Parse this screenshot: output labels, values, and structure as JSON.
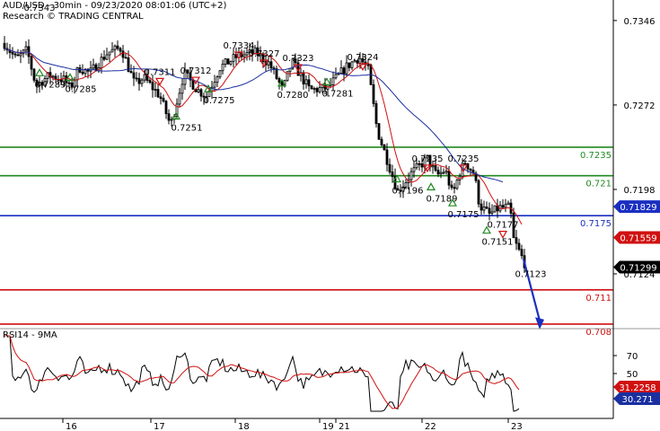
{
  "header": {
    "line1": "AUD/USD - 30min - 09/23/2020 08:01:06 (UTC+2)",
    "line2": "Research © TRADING CENTRAL"
  },
  "rsi": {
    "label": "RSI14 - 9MA"
  },
  "chart_data": [
    {
      "type": "candlestick",
      "x_ticks": [
        "16",
        "17",
        "18",
        "19",
        "21",
        "22",
        "23"
      ],
      "y_ticks": [
        "0.7346",
        "0.7272",
        "0.7198",
        "0.7124"
      ],
      "ylim": [
        0.7076,
        0.7364
      ],
      "moving_averages": [
        {
          "color": "#d01010"
        },
        {
          "color": "#1a2fa0"
        }
      ],
      "horizontal_levels": [
        {
          "value": "0.7235",
          "color": "#208a20"
        },
        {
          "value": "0.721",
          "color": "#208a20"
        },
        {
          "value": "0.7175",
          "color": "#1a2fc0"
        },
        {
          "value": "0.711",
          "color": "#d01010"
        },
        {
          "value": "0.708",
          "color": "#d01010"
        }
      ],
      "price_tags": [
        {
          "value": "0.71829",
          "color": "#1a2fc0"
        },
        {
          "value": "0.71559",
          "color": "#d01010"
        },
        {
          "value": "0.71299",
          "color": "#000000"
        }
      ],
      "pivot_labels": [
        {
          "text": "0.7343",
          "kind": "high"
        },
        {
          "text": "0.7311",
          "kind": "high"
        },
        {
          "text": "0.7312",
          "kind": "high"
        },
        {
          "text": "0.7334",
          "kind": "high"
        },
        {
          "text": "0.7327",
          "kind": "high"
        },
        {
          "text": "0.7323",
          "kind": "high"
        },
        {
          "text": "0.7324",
          "kind": "high"
        },
        {
          "text": "0.7235",
          "kind": "high"
        },
        {
          "text": "0.7235",
          "kind": "high"
        },
        {
          "text": "0.7177",
          "kind": "high"
        },
        {
          "text": "0.7289",
          "kind": "low"
        },
        {
          "text": "0.7285",
          "kind": "low"
        },
        {
          "text": "0.7251",
          "kind": "low"
        },
        {
          "text": "0.7275",
          "kind": "low"
        },
        {
          "text": "0.7280",
          "kind": "low"
        },
        {
          "text": "0.7281",
          "kind": "low"
        },
        {
          "text": "0.7196",
          "kind": "low"
        },
        {
          "text": "0.7189",
          "kind": "low"
        },
        {
          "text": "0.7175",
          "kind": "low"
        },
        {
          "text": "0.7151",
          "kind": "low"
        },
        {
          "text": "0.7123",
          "kind": "target"
        }
      ]
    },
    {
      "type": "line",
      "title": "RSI14 - 9MA",
      "y_ticks": [
        "70",
        "50"
      ],
      "ylim": [
        0,
        100
      ],
      "value_tags": [
        {
          "value": "31.2258",
          "color": "#d01010"
        },
        {
          "value": "30.271",
          "color": "#1a2fa0"
        }
      ]
    }
  ]
}
